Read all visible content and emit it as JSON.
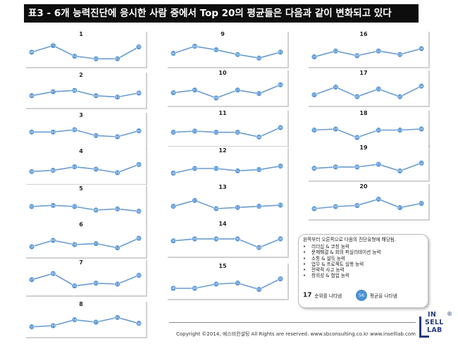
{
  "title": "표3 - 6개 능력진단에 응시한 사람 중에서 Top 20의 평균들은 다음과 같이 변화되고 있다",
  "legend": {
    "intro": "왼쪽부터 오른쪽으로 다음의 진단유형에 해당됨.",
    "items": [
      "리더십 & 코칭 능력",
      "문제해결 & 회의 퍼실리테이션 능력",
      "소통 & 설득 능력",
      "업무 & 프로젝트 실행 능력",
      "전략적 사고 능력",
      "창의성 & 협업 능력"
    ],
    "rank_example": "17",
    "rank_desc": "순위를 나타냄",
    "avg_example": "56",
    "avg_desc": "평균을 나타냄"
  },
  "logo": {
    "line1": "IN",
    "line2": "SELL",
    "line3": "LAB",
    "mark": "®"
  },
  "footer": "Copyright ©2014, 에스비컨설팅 All Rights are reserved.    www.sbconsulting.co.kr    www.inselllab.com",
  "colors": {
    "line": "#6a9bd1",
    "marker": "#4b8fd4",
    "panel_shadow": "#9a9a9a"
  },
  "chart_data": [
    {
      "type": "line",
      "title": "1",
      "categories": [
        "리더십 & 코칭",
        "문제해결 & 회의 퍼실리테이션",
        "소통 & 설득",
        "업무 & 프로젝트 실행",
        "전략적 사고",
        "창의성 & 협업"
      ],
      "values": [
        66,
        71,
        63,
        61,
        61,
        70
      ],
      "ylim": [
        58,
        74
      ]
    },
    {
      "type": "line",
      "title": "2",
      "categories": [
        "리더십 & 코칭",
        "문제해결 & 회의 퍼실리테이션",
        "소통 & 설득",
        "업무 & 프로젝트 실행",
        "전략적 사고",
        "창의성 & 협업"
      ],
      "values": [
        64,
        67,
        68,
        64,
        63,
        66
      ],
      "ylim": [
        58,
        74
      ]
    },
    {
      "type": "line",
      "title": "3",
      "categories": [
        "리더십 & 코칭",
        "문제해결 & 회의 퍼실리테이션",
        "소통 & 설득",
        "업무 & 프로젝트 실행",
        "전략적 사고",
        "창의성 & 협업"
      ],
      "values": [
        64,
        64,
        66,
        61,
        60,
        65
      ],
      "ylim": [
        54,
        72
      ]
    },
    {
      "type": "line",
      "title": "4",
      "categories": [
        "리더십 & 코칭",
        "문제해결 & 회의 퍼실리테이션",
        "소통 & 설득",
        "업무 & 프로젝트 실행",
        "전략적 사고",
        "창의성 & 협업"
      ],
      "values": [
        59,
        60,
        63,
        61,
        58,
        65
      ],
      "ylim": [
        52,
        70
      ]
    },
    {
      "type": "line",
      "title": "5",
      "categories": [
        "리더십 & 코칭",
        "문제해결 & 회의 퍼실리테이션",
        "소통 & 설득",
        "업무 & 프로젝트 실행",
        "전략적 사고",
        "창의성 & 협업"
      ],
      "values": [
        63,
        64,
        63,
        60,
        61,
        59
      ],
      "ylim": [
        54,
        72
      ]
    },
    {
      "type": "line",
      "title": "6",
      "categories": [
        "리더십 & 코칭",
        "문제해결 & 회의 퍼실리테이션",
        "소통 & 설득",
        "업무 & 프로젝트 실행",
        "전략적 사고",
        "창의성 & 협업"
      ],
      "values": [
        54,
        60,
        56,
        57,
        53,
        62
      ],
      "ylim": [
        48,
        68
      ]
    },
    {
      "type": "line",
      "title": "7",
      "categories": [
        "리더십 & 코칭",
        "문제해결 & 회의 퍼실리테이션",
        "소통 & 설득",
        "업무 & 프로젝트 실행",
        "전략적 사고",
        "창의성 & 협업"
      ],
      "values": [
        57,
        64,
        50,
        53,
        52,
        62
      ],
      "ylim": [
        44,
        68
      ]
    },
    {
      "type": "line",
      "title": "8",
      "categories": [
        "리더십 & 코칭",
        "문제해결 & 회의 퍼실리테이션",
        "소통 & 설득",
        "업무 & 프로젝트 실행",
        "전략적 사고",
        "창의성 & 협업"
      ],
      "values": [
        53,
        54,
        59,
        57,
        61,
        56
      ],
      "ylim": [
        48,
        66
      ]
    },
    {
      "type": "line",
      "title": "9",
      "categories": [
        "리더십 & 코칭",
        "문제해결 & 회의 퍼실리테이션",
        "소통 & 설득",
        "업무 & 프로젝트 실행",
        "전략적 사고",
        "창의성 & 협업"
      ],
      "values": [
        60,
        66,
        63,
        59,
        56,
        61
      ],
      "ylim": [
        52,
        70
      ]
    },
    {
      "type": "line",
      "title": "10",
      "categories": [
        "리더십 & 코칭",
        "문제해결 & 회의 퍼실리테이션",
        "소통 & 설득",
        "업무 & 프로젝트 실행",
        "전략적 사고",
        "창의성 & 협업"
      ],
      "values": [
        54,
        57,
        48,
        57,
        53,
        63
      ],
      "ylim": [
        44,
        68
      ]
    },
    {
      "type": "line",
      "title": "11",
      "categories": [
        "리더십 & 코칭",
        "문제해결 & 회의 퍼실리테이션",
        "소통 & 설득",
        "업무 & 프로젝트 실행",
        "전략적 사고",
        "창의성 & 협업"
      ],
      "values": [
        52,
        53,
        52,
        52,
        48,
        56
      ],
      "ylim": [
        44,
        62
      ]
    },
    {
      "type": "line",
      "title": "12",
      "categories": [
        "리더십 & 코칭",
        "문제해결 & 회의 퍼실리테이션",
        "소통 & 설득",
        "업무 & 프로젝트 실행",
        "전략적 사고",
        "창의성 & 협업"
      ],
      "values": [
        49,
        53,
        53,
        51,
        52,
        55
      ],
      "ylim": [
        44,
        62
      ]
    },
    {
      "type": "line",
      "title": "13",
      "categories": [
        "리더십 & 코칭",
        "문제해결 & 회의 퍼실리테이션",
        "소통 & 설득",
        "업무 & 프로젝트 실행",
        "전략적 사고",
        "창의성 & 협업"
      ],
      "values": [
        52,
        57,
        50,
        51,
        52,
        53
      ],
      "ylim": [
        44,
        62
      ]
    },
    {
      "type": "line",
      "title": "14",
      "categories": [
        "리더십 & 코칭",
        "문제해결 & 회의 퍼실리테이션",
        "소통 & 설득",
        "업무 & 프로젝트 실행",
        "전략적 사고",
        "창의성 & 협업"
      ],
      "values": [
        56,
        58,
        58,
        58,
        49,
        58
      ],
      "ylim": [
        44,
        66
      ]
    },
    {
      "type": "line",
      "title": "15",
      "categories": [
        "리더십 & 코칭",
        "문제해결 & 회의 퍼실리테이션",
        "소통 & 설득",
        "업무 & 프로젝트 실행",
        "전략적 사고",
        "창의성 & 협업"
      ],
      "values": [
        46,
        46,
        50,
        51,
        45,
        55
      ],
      "ylim": [
        40,
        60
      ]
    },
    {
      "type": "line",
      "title": "16",
      "categories": [
        "리더십 & 코칭",
        "문제해결 & 회의 퍼실리테이션",
        "소통 & 설득",
        "업무 & 프로젝트 실행",
        "전략적 사고",
        "창의성 & 협업"
      ],
      "values": [
        47,
        52,
        48,
        52,
        49,
        54
      ],
      "ylim": [
        42,
        60
      ]
    },
    {
      "type": "line",
      "title": "17",
      "categories": [
        "리더십 & 코칭",
        "문제해결 & 회의 퍼실리테이션",
        "소통 & 설득",
        "업무 & 프로젝트 실행",
        "전략적 사고",
        "창의성 & 협업"
      ],
      "values": [
        47,
        55,
        45,
        53,
        45,
        56
      ],
      "ylim": [
        40,
        62
      ]
    },
    {
      "type": "line",
      "title": "18",
      "categories": [
        "리더십 & 코칭",
        "문제해결 & 회의 퍼실리테이션",
        "소통 & 설득",
        "업무 & 프로젝트 실행",
        "전략적 사고",
        "창의성 & 협업"
      ],
      "values": [
        53,
        54,
        46,
        53,
        53,
        54
      ],
      "ylim": [
        42,
        62
      ]
    },
    {
      "type": "line",
      "title": "19",
      "categories": [
        "리더십 & 코칭",
        "문제해결 & 회의 퍼실리테이션",
        "소통 & 설득",
        "업무 & 프로젝트 실행",
        "전략적 사고",
        "창의성 & 협업"
      ],
      "values": [
        48,
        49,
        49,
        51,
        46,
        52
      ],
      "ylim": [
        42,
        58
      ]
    },
    {
      "type": "line",
      "title": "20",
      "categories": [
        "리더십 & 코칭",
        "문제해결 & 회의 퍼실리테이션",
        "소통 & 설득",
        "업무 & 프로젝트 실행",
        "전략적 사고",
        "창의성 & 협업"
      ],
      "values": [
        46,
        48,
        49,
        55,
        47,
        51
      ],
      "ylim": [
        40,
        60
      ]
    }
  ]
}
